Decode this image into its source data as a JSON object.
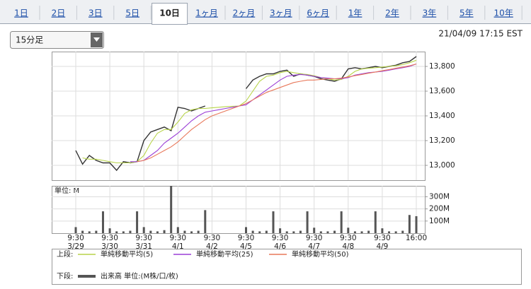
{
  "tabs": [
    "1日",
    "2日",
    "3日",
    "5日",
    "10日",
    "1ヶ月",
    "2ヶ月",
    "3ヶ月",
    "6ヶ月",
    "1年",
    "2年",
    "3年",
    "5年",
    "10年"
  ],
  "active_tab": 4,
  "dropdown": "15分足",
  "timestamp": "21/04/09 17:15 EST",
  "chart_data": [
    {
      "type": "line",
      "legend_label": "上段:",
      "grid": true,
      "ylim": [
        12880,
        13920
      ],
      "yticks": [
        {
          "value": 13000,
          "label": "13,000"
        },
        {
          "value": 13200,
          "label": "13,200"
        },
        {
          "value": 13400,
          "label": "13,400"
        },
        {
          "value": 13600,
          "label": "13,600"
        },
        {
          "value": 13800,
          "label": "13,800"
        }
      ],
      "series": [
        {
          "color": "#333333",
          "values": [
            13120,
            13010,
            13080,
            13040,
            13020,
            13020,
            12960,
            13030,
            13020,
            13030,
            13200,
            13270,
            13290,
            13310,
            13280,
            13470,
            13460,
            13440,
            13460,
            13480,
            null,
            null,
            null,
            null,
            null,
            13620,
            13690,
            13720,
            13740,
            13740,
            13760,
            13770,
            13720,
            13740,
            13730,
            13720,
            13700,
            13690,
            13680,
            13700,
            13780,
            13790,
            13780,
            13790,
            13800,
            13790,
            13800,
            13810,
            13830,
            13840,
            13880
          ]
        },
        {
          "name": "単純移動平均(5)",
          "color": "#b8d44a",
          "values": [
            null,
            13060,
            13050,
            13050,
            13040,
            13030,
            13020,
            13020,
            13020,
            13030,
            13080,
            13180,
            13260,
            13290,
            13290,
            13350,
            13420,
            13450,
            13460,
            13460,
            13465,
            13470,
            13475,
            13478,
            13480,
            13520,
            13600,
            13680,
            13720,
            13730,
            13750,
            13760,
            13750,
            13740,
            13735,
            13725,
            13710,
            13700,
            13690,
            13695,
            13720,
            13760,
            13780,
            13785,
            13790,
            13795,
            13800,
            13805,
            13815,
            13830,
            13850
          ]
        },
        {
          "name": "単純移動平均(25)",
          "color": "#9b3fd6",
          "values": [
            null,
            null,
            null,
            null,
            null,
            null,
            null,
            null,
            13030,
            13030,
            13040,
            13080,
            13120,
            13180,
            13220,
            13260,
            13310,
            13360,
            13400,
            13430,
            13440,
            13450,
            13460,
            13470,
            13480,
            13490,
            13530,
            13570,
            13610,
            13650,
            13690,
            13720,
            13730,
            13735,
            13730,
            13720,
            13710,
            13705,
            13700,
            13700,
            13710,
            13730,
            13740,
            13750,
            13755,
            13760,
            13770,
            13780,
            13790,
            13800,
            13820
          ]
        },
        {
          "name": "単純移動平均(50)",
          "color": "#e8785a",
          "values": [
            null,
            null,
            null,
            null,
            null,
            null,
            null,
            null,
            null,
            13030,
            13040,
            13060,
            13090,
            13120,
            13150,
            13190,
            13240,
            13290,
            13330,
            13370,
            13400,
            13420,
            13440,
            13460,
            13480,
            13500,
            13530,
            13560,
            13590,
            13610,
            13630,
            13650,
            13670,
            13680,
            13690,
            13690,
            13695,
            13700,
            13700,
            13705,
            13715,
            13725,
            13735,
            13745,
            13755,
            13765,
            13775,
            13785,
            13795,
            13805,
            13820
          ]
        }
      ]
    },
    {
      "type": "bar",
      "legend_label": "下段:",
      "unit_label": "単位: M",
      "grid": true,
      "categories": [
        "9:30",
        null,
        null,
        null,
        null,
        "9:30",
        null,
        null,
        null,
        null,
        "9:30",
        null,
        null,
        null,
        null,
        "9:30",
        null,
        null,
        null,
        null,
        "9:30",
        null,
        null,
        null,
        null,
        "9:30",
        null,
        null,
        null,
        null,
        "9:30",
        null,
        null,
        null,
        null,
        "9:30",
        null,
        null,
        null,
        null,
        "9:30",
        null,
        null,
        null,
        null,
        "9:30",
        null,
        null,
        null,
        null,
        "16:00"
      ],
      "dates": [
        "3/29",
        null,
        null,
        null,
        null,
        "3/30",
        null,
        null,
        null,
        null,
        "3/31",
        null,
        null,
        null,
        null,
        "4/1",
        null,
        null,
        null,
        null,
        "4/2",
        null,
        null,
        null,
        null,
        "4/5",
        null,
        null,
        null,
        null,
        "4/6",
        null,
        null,
        null,
        null,
        "4/7",
        null,
        null,
        null,
        null,
        "4/8",
        null,
        null,
        null,
        null,
        "4/9",
        null,
        null,
        null,
        null,
        null
      ],
      "ylim": [
        0,
        390
      ],
      "yticks": [
        {
          "value": 100,
          "label": "100M"
        },
        {
          "value": 200,
          "label": "200M"
        },
        {
          "value": 300,
          "label": "300M"
        }
      ],
      "series": [
        {
          "name": "出来高 単位:(M株/口/枚)",
          "color": "#555555",
          "values": [
            50,
            20,
            15,
            20,
            180,
            40,
            15,
            15,
            20,
            180,
            50,
            20,
            15,
            25,
            390,
            50,
            20,
            15,
            20,
            190,
            null,
            null,
            null,
            null,
            null,
            50,
            20,
            15,
            20,
            180,
            40,
            15,
            15,
            20,
            180,
            45,
            15,
            15,
            20,
            180,
            45,
            15,
            15,
            20,
            180,
            40,
            15,
            15,
            20,
            150,
            140
          ]
        }
      ]
    }
  ]
}
